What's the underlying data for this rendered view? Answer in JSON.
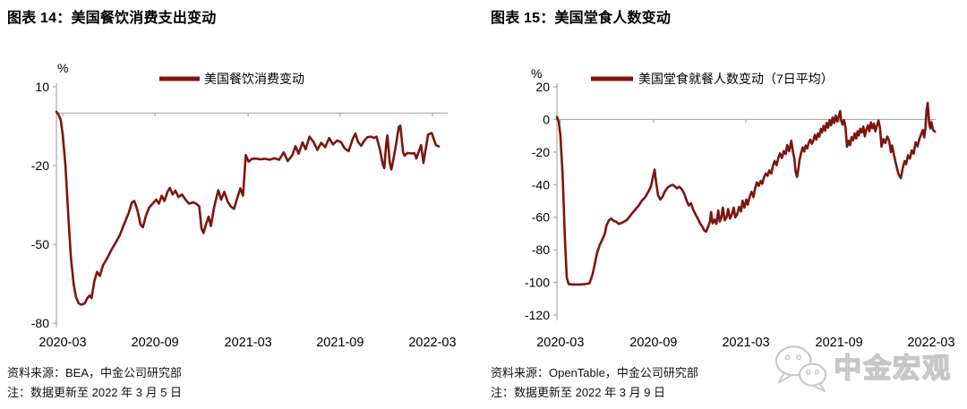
{
  "watermark": {
    "text": "中金宏观",
    "icon": "wechat-icon"
  },
  "chart_data": [
    {
      "type": "line",
      "title": "图表 14：美国餐饮消费支出变动",
      "legend_label": "美国餐饮消费变动",
      "unit_label": "%",
      "line_color": "#7E1410",
      "axis_color": "#a9a9a9",
      "ylim": [
        -80,
        10
      ],
      "yticks": [
        10,
        -20,
        -50,
        -80
      ],
      "grid": "zero-line-only",
      "legend_position": "top",
      "x_axis": {
        "labels": [
          "2020-03",
          "2020-09",
          "2021-03",
          "2021-09",
          "2022-03"
        ],
        "positions": [
          0.016,
          0.252,
          0.49,
          0.725,
          0.961
        ],
        "note": "x values below are fractions of the time axis (≈2020-02 … 2022-03)"
      },
      "source": "资料来源：BEA，中金公司研究部",
      "note": "注：数据更新至 2022 年 3 月 5 日",
      "series": [
        [
          0.0,
          0.5
        ],
        [
          0.005,
          -0.5
        ],
        [
          0.011,
          -2.5
        ],
        [
          0.016,
          -8
        ],
        [
          0.023,
          -20
        ],
        [
          0.03,
          -38
        ],
        [
          0.037,
          -55
        ],
        [
          0.044,
          -65
        ],
        [
          0.05,
          -70
        ],
        [
          0.057,
          -72.5
        ],
        [
          0.064,
          -73
        ],
        [
          0.072,
          -72.5
        ],
        [
          0.079,
          -70.5
        ],
        [
          0.085,
          -69.5
        ],
        [
          0.09,
          -70.5
        ],
        [
          0.097,
          -64
        ],
        [
          0.104,
          -60.5
        ],
        [
          0.111,
          -62
        ],
        [
          0.119,
          -58
        ],
        [
          0.129,
          -55.5
        ],
        [
          0.141,
          -52
        ],
        [
          0.151,
          -49.5
        ],
        [
          0.162,
          -46.5
        ],
        [
          0.174,
          -42
        ],
        [
          0.185,
          -38
        ],
        [
          0.193,
          -34
        ],
        [
          0.199,
          -33.5
        ],
        [
          0.207,
          -37
        ],
        [
          0.215,
          -42.5
        ],
        [
          0.221,
          -43.5
        ],
        [
          0.229,
          -39
        ],
        [
          0.237,
          -36
        ],
        [
          0.246,
          -34.5
        ],
        [
          0.255,
          -33
        ],
        [
          0.262,
          -34.5
        ],
        [
          0.269,
          -31.5
        ],
        [
          0.276,
          -33.5
        ],
        [
          0.284,
          -30
        ],
        [
          0.29,
          -28.5
        ],
        [
          0.297,
          -31
        ],
        [
          0.304,
          -29.5
        ],
        [
          0.312,
          -32
        ],
        [
          0.321,
          -31
        ],
        [
          0.33,
          -33
        ],
        [
          0.339,
          -34.5
        ],
        [
          0.349,
          -34
        ],
        [
          0.357,
          -34.5
        ],
        [
          0.365,
          -35.5
        ],
        [
          0.371,
          -44
        ],
        [
          0.376,
          -45.7
        ],
        [
          0.383,
          -42
        ],
        [
          0.389,
          -39.5
        ],
        [
          0.395,
          -43
        ],
        [
          0.403,
          -36
        ],
        [
          0.41,
          -31.5
        ],
        [
          0.414,
          -29.4
        ],
        [
          0.421,
          -33
        ],
        [
          0.429,
          -30
        ],
        [
          0.437,
          -33.5
        ],
        [
          0.445,
          -35.5
        ],
        [
          0.454,
          -36.5
        ],
        [
          0.463,
          -32
        ],
        [
          0.47,
          -28.7
        ],
        [
          0.477,
          -31.5
        ],
        [
          0.484,
          -16
        ],
        [
          0.491,
          -18.5
        ],
        [
          0.499,
          -17.5
        ],
        [
          0.509,
          -17.3
        ],
        [
          0.521,
          -17.6
        ],
        [
          0.533,
          -17.4
        ],
        [
          0.545,
          -17.8
        ],
        [
          0.557,
          -17.2
        ],
        [
          0.569,
          -17.8
        ],
        [
          0.581,
          -15
        ],
        [
          0.591,
          -18.3
        ],
        [
          0.603,
          -16
        ],
        [
          0.611,
          -12.6
        ],
        [
          0.619,
          -15.5
        ],
        [
          0.629,
          -11.2
        ],
        [
          0.637,
          -13.8
        ],
        [
          0.647,
          -9
        ],
        [
          0.657,
          -11
        ],
        [
          0.667,
          -14
        ],
        [
          0.677,
          -11.3
        ],
        [
          0.687,
          -13
        ],
        [
          0.697,
          -9.5
        ],
        [
          0.707,
          -12
        ],
        [
          0.717,
          -10.5
        ],
        [
          0.727,
          -11
        ],
        [
          0.737,
          -13.5
        ],
        [
          0.747,
          -14.5
        ],
        [
          0.757,
          -10
        ],
        [
          0.764,
          -7.8
        ],
        [
          0.771,
          -11
        ],
        [
          0.779,
          -12.5
        ],
        [
          0.787,
          -10.5
        ],
        [
          0.795,
          -9.2
        ],
        [
          0.804,
          -9
        ],
        [
          0.812,
          -9.5
        ],
        [
          0.818,
          -9
        ],
        [
          0.827,
          -14
        ],
        [
          0.834,
          -19.5
        ],
        [
          0.838,
          -21
        ],
        [
          0.843,
          -11.5
        ],
        [
          0.846,
          -8.5
        ],
        [
          0.852,
          -19
        ],
        [
          0.856,
          -21.5
        ],
        [
          0.862,
          -17
        ],
        [
          0.868,
          -12
        ],
        [
          0.875,
          -5.3
        ],
        [
          0.879,
          -4.8
        ],
        [
          0.886,
          -15
        ],
        [
          0.89,
          -16.2
        ],
        [
          0.897,
          -15.2
        ],
        [
          0.909,
          -15.4
        ],
        [
          0.915,
          -15.3
        ],
        [
          0.92,
          -17.3
        ],
        [
          0.932,
          -12.2
        ],
        [
          0.938,
          -19
        ],
        [
          0.95,
          -8.2
        ],
        [
          0.959,
          -7.6
        ],
        [
          0.97,
          -12.2
        ],
        [
          0.977,
          -12.7
        ]
      ]
    },
    {
      "type": "line",
      "title": "图表 15：美国堂食人数变动",
      "legend_label": "美国堂食就餐人数变动（7日平均）",
      "unit_label": "%",
      "line_color": "#7E1410",
      "axis_color": "#a9a9a9",
      "ylim": [
        -120,
        20
      ],
      "yticks": [
        20,
        0,
        -20,
        -40,
        -60,
        -80,
        -100,
        -120
      ],
      "grid": "zero-line-only",
      "legend_position": "top",
      "x_axis": {
        "labels": [
          "2020-03",
          "2020-09",
          "2021-03",
          "2021-09",
          "2022-03"
        ],
        "positions": [
          0.009,
          0.255,
          0.499,
          0.745,
          0.988
        ],
        "note": "x values below are fractions of the time axis (≈2020-03 … 2022-03)"
      },
      "source": "资料来源：OpenTable，中金公司研究部",
      "note": "注：数据更新至 2022 年 3 月 9 日",
      "series": [
        [
          0.0,
          1.5
        ],
        [
          0.005,
          -1.5
        ],
        [
          0.009,
          -9.5
        ],
        [
          0.015,
          -33
        ],
        [
          0.021,
          -73
        ],
        [
          0.026,
          -97
        ],
        [
          0.031,
          -101
        ],
        [
          0.045,
          -101.3
        ],
        [
          0.06,
          -101.3
        ],
        [
          0.075,
          -101
        ],
        [
          0.086,
          -100.5
        ],
        [
          0.094,
          -95
        ],
        [
          0.1,
          -88.7
        ],
        [
          0.106,
          -82
        ],
        [
          0.113,
          -77
        ],
        [
          0.12,
          -73.6
        ],
        [
          0.126,
          -70.5
        ],
        [
          0.131,
          -65
        ],
        [
          0.137,
          -62
        ],
        [
          0.143,
          -60.8
        ],
        [
          0.15,
          -62.3
        ],
        [
          0.157,
          -62.8
        ],
        [
          0.163,
          -64.1
        ],
        [
          0.17,
          -63.6
        ],
        [
          0.177,
          -62.7
        ],
        [
          0.184,
          -61.9
        ],
        [
          0.192,
          -59.6
        ],
        [
          0.2,
          -57.2
        ],
        [
          0.208,
          -55
        ],
        [
          0.216,
          -52.8
        ],
        [
          0.224,
          -49.9
        ],
        [
          0.232,
          -48.1
        ],
        [
          0.24,
          -45
        ],
        [
          0.248,
          -41.3
        ],
        [
          0.254,
          -35
        ],
        [
          0.258,
          -30.8
        ],
        [
          0.262,
          -38.6
        ],
        [
          0.267,
          -46.3
        ],
        [
          0.273,
          -49.2
        ],
        [
          0.279,
          -47.4
        ],
        [
          0.285,
          -44.1
        ],
        [
          0.292,
          -41.9
        ],
        [
          0.299,
          -40.8
        ],
        [
          0.305,
          -40.1
        ],
        [
          0.31,
          -40.8
        ],
        [
          0.317,
          -42.3
        ],
        [
          0.323,
          -41.3
        ],
        [
          0.329,
          -42.6
        ],
        [
          0.336,
          -45.5
        ],
        [
          0.342,
          -49.5
        ],
        [
          0.348,
          -52.8
        ],
        [
          0.354,
          -51.4
        ],
        [
          0.359,
          -55
        ],
        [
          0.366,
          -58.3
        ],
        [
          0.372,
          -60.8
        ],
        [
          0.378,
          -63.8
        ],
        [
          0.385,
          -66.3
        ],
        [
          0.389,
          -68.1
        ],
        [
          0.394,
          -68.9
        ],
        [
          0.399,
          -65.9
        ],
        [
          0.404,
          -62.7
        ],
        [
          0.407,
          -56.8
        ],
        [
          0.411,
          -63.8
        ],
        [
          0.416,
          -61.4
        ],
        [
          0.421,
          -64.1
        ],
        [
          0.426,
          -55.9
        ],
        [
          0.43,
          -62.7
        ],
        [
          0.434,
          -60.5
        ],
        [
          0.438,
          -54.1
        ],
        [
          0.443,
          -61.9
        ],
        [
          0.448,
          -60.1
        ],
        [
          0.452,
          -55
        ],
        [
          0.457,
          -60.8
        ],
        [
          0.462,
          -58.3
        ],
        [
          0.467,
          -54.1
        ],
        [
          0.471,
          -60.1
        ],
        [
          0.476,
          -58.3
        ],
        [
          0.481,
          -53.6
        ],
        [
          0.486,
          -56.5
        ],
        [
          0.49,
          -49.9
        ],
        [
          0.495,
          -54.1
        ],
        [
          0.5,
          -49.2
        ],
        [
          0.504,
          -52.3
        ],
        [
          0.509,
          -47.4
        ],
        [
          0.514,
          -44.4
        ],
        [
          0.519,
          -47.7
        ],
        [
          0.523,
          -42.6
        ],
        [
          0.528,
          -38.6
        ],
        [
          0.533,
          -40.8
        ],
        [
          0.538,
          -37.7
        ],
        [
          0.542,
          -39.5
        ],
        [
          0.547,
          -35.3
        ],
        [
          0.552,
          -33.2
        ],
        [
          0.556,
          -34.6
        ],
        [
          0.561,
          -31.3
        ],
        [
          0.566,
          -33.2
        ],
        [
          0.571,
          -28.1
        ],
        [
          0.575,
          -25.5
        ],
        [
          0.58,
          -28.1
        ],
        [
          0.585,
          -23.3
        ],
        [
          0.589,
          -20.8
        ],
        [
          0.594,
          -23.7
        ],
        [
          0.599,
          -19.5
        ],
        [
          0.604,
          -21.3
        ],
        [
          0.608,
          -15.8
        ],
        [
          0.613,
          -19.5
        ],
        [
          0.616,
          -16.4
        ],
        [
          0.619,
          -13.1
        ],
        [
          0.623,
          -19.5
        ],
        [
          0.627,
          -24
        ],
        [
          0.63,
          -31.7
        ],
        [
          0.634,
          -35.3
        ],
        [
          0.638,
          -29.5
        ],
        [
          0.641,
          -24.4
        ],
        [
          0.645,
          -20.4
        ],
        [
          0.649,
          -17.1
        ],
        [
          0.653,
          -19.7
        ],
        [
          0.657,
          -16
        ],
        [
          0.661,
          -17.8
        ],
        [
          0.665,
          -14.2
        ],
        [
          0.669,
          -12.4
        ],
        [
          0.673,
          -14.9
        ],
        [
          0.677,
          -13.1
        ],
        [
          0.681,
          -9.5
        ],
        [
          0.685,
          -12.4
        ],
        [
          0.689,
          -8.7
        ],
        [
          0.693,
          -10.6
        ],
        [
          0.697,
          -5.8
        ],
        [
          0.7,
          -8
        ],
        [
          0.704,
          -4
        ],
        [
          0.708,
          -6.9
        ],
        [
          0.712,
          -2.2
        ],
        [
          0.716,
          -5.1
        ],
        [
          0.72,
          -0.4
        ],
        [
          0.724,
          -3.6
        ],
        [
          0.728,
          1.1
        ],
        [
          0.732,
          -2.2
        ],
        [
          0.736,
          2.4
        ],
        [
          0.74,
          -1.3
        ],
        [
          0.744,
          1.8
        ],
        [
          0.748,
          5.1
        ],
        [
          0.75,
          -0.4
        ],
        [
          0.754,
          -3.1
        ],
        [
          0.758,
          -0.4
        ],
        [
          0.762,
          -4.9
        ],
        [
          0.766,
          -16.8
        ],
        [
          0.77,
          -13.1
        ],
        [
          0.774,
          -15.8
        ],
        [
          0.778,
          -10.9
        ],
        [
          0.782,
          -12.8
        ],
        [
          0.786,
          -8.6
        ],
        [
          0.79,
          -11.7
        ],
        [
          0.794,
          -7.3
        ],
        [
          0.797,
          -9.8
        ],
        [
          0.801,
          -5.8
        ],
        [
          0.805,
          -8
        ],
        [
          0.809,
          -4.4
        ],
        [
          0.813,
          -10.4
        ],
        [
          0.817,
          -6.2
        ],
        [
          0.821,
          -3.6
        ],
        [
          0.825,
          -7.3
        ],
        [
          0.829,
          -1.8
        ],
        [
          0.833,
          -5.5
        ],
        [
          0.837,
          -2.6
        ],
        [
          0.841,
          -7.3
        ],
        [
          0.845,
          -4
        ],
        [
          0.849,
          -0.7
        ],
        [
          0.853,
          -4.9
        ],
        [
          0.857,
          -16.8
        ],
        [
          0.862,
          -12
        ],
        [
          0.867,
          -14.5
        ],
        [
          0.872,
          -10.5
        ],
        [
          0.877,
          -13
        ],
        [
          0.882,
          -20
        ],
        [
          0.885,
          -16
        ],
        [
          0.89,
          -22
        ],
        [
          0.896,
          -28
        ],
        [
          0.902,
          -33.7
        ],
        [
          0.908,
          -36
        ],
        [
          0.913,
          -30
        ],
        [
          0.918,
          -25.5
        ],
        [
          0.922,
          -27.5
        ],
        [
          0.927,
          -22
        ],
        [
          0.932,
          -24
        ],
        [
          0.937,
          -19
        ],
        [
          0.942,
          -21
        ],
        [
          0.947,
          -14
        ],
        [
          0.952,
          -16.5
        ],
        [
          0.957,
          -12
        ],
        [
          0.962,
          -9
        ],
        [
          0.966,
          -6.5
        ],
        [
          0.97,
          -11
        ],
        [
          0.973,
          -5
        ],
        [
          0.976,
          5.5
        ],
        [
          0.979,
          10.2
        ],
        [
          0.983,
          -2.7
        ],
        [
          0.986,
          -5.5
        ],
        [
          0.989,
          -1.8
        ],
        [
          0.993,
          -6.4
        ],
        [
          0.998,
          -7.5
        ]
      ]
    }
  ]
}
